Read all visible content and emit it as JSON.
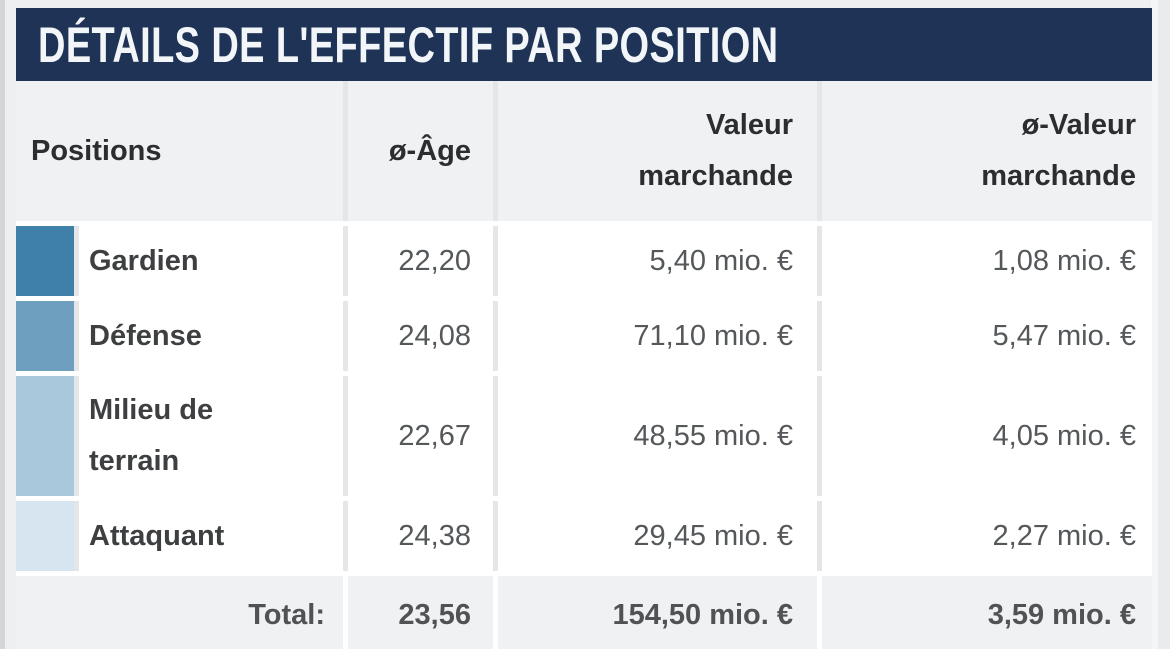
{
  "title": "DÉTAILS DE L'EFFECTIF PAR POSITION",
  "table": {
    "columns": {
      "positions": "Positions",
      "age": "ø-Âge",
      "market_value": "Valeur marchande",
      "avg_market_value": "ø-Valeur marchande"
    },
    "rows": [
      {
        "position": "Gardien",
        "color": "#3f80a9",
        "age": "22,20",
        "market_value": "5,40 mio. €",
        "avg_market_value": "1,08 mio. €"
      },
      {
        "position": "Défense",
        "color": "#6f9fbf",
        "age": "24,08",
        "market_value": "71,10 mio. €",
        "avg_market_value": "5,47 mio. €"
      },
      {
        "position": "Milieu de terrain",
        "color": "#aac8db",
        "age": "22,67",
        "market_value": "48,55 mio. €",
        "avg_market_value": "4,05 mio. €"
      },
      {
        "position": "Attaquant",
        "color": "#d6e5ef",
        "age": "24,38",
        "market_value": "29,45 mio. €",
        "avg_market_value": "2,27 mio. €"
      }
    ],
    "total": {
      "label": "Total:",
      "age": "23,56",
      "market_value": "154,50 mio. €",
      "avg_market_value": "3,59 mio. €"
    }
  },
  "colors": {
    "header_bar_bg": "#1e3355",
    "header_bar_text": "#f3f6f9",
    "table_header_bg": "#f0f1f2",
    "row_bg": "#ffffff",
    "grid_line": "#e4e6e8",
    "page_bg": "#edeff1"
  },
  "chart_data": {
    "type": "table",
    "title": "DÉTAILS DE L'EFFECTIF PAR POSITION",
    "columns": [
      "Positions",
      "ø-Âge",
      "Valeur marchande",
      "ø-Valeur marchande"
    ],
    "rows": [
      [
        "Gardien",
        "22,20",
        "5,40 mio. €",
        "1,08 mio. €"
      ],
      [
        "Défense",
        "24,08",
        "71,10 mio. €",
        "5,47 mio. €"
      ],
      [
        "Milieu de terrain",
        "22,67",
        "48,55 mio. €",
        "4,05 mio. €"
      ],
      [
        "Attaquant",
        "24,38",
        "29,45 mio. €",
        "2,27 mio. €"
      ],
      [
        "Total:",
        "23,56",
        "154,50 mio. €",
        "3,59 mio. €"
      ]
    ]
  }
}
